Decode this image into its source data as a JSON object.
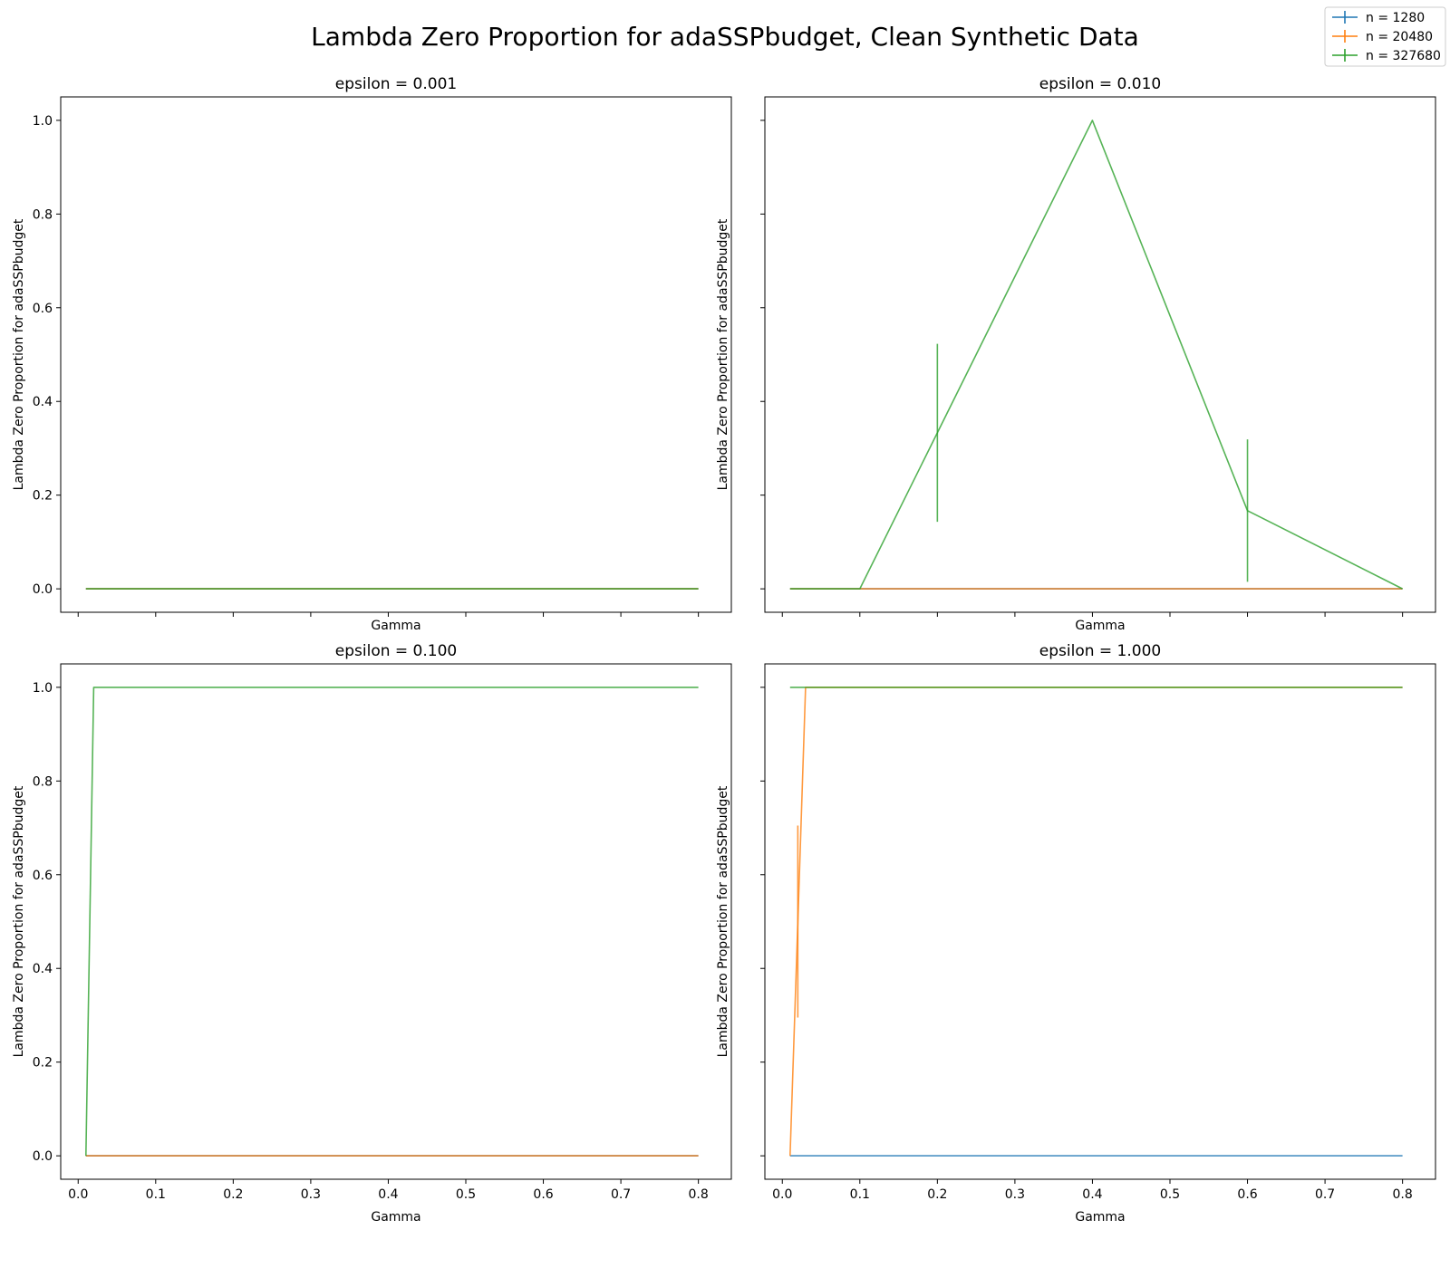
{
  "chart_data": {
    "type": "line",
    "title": "Lambda Zero Proportion for adaSSPbudget, Clean Synthetic Data",
    "legend": {
      "placement": "top-right",
      "entries": [
        {
          "label": "n = 1280",
          "color": "#1f77b4"
        },
        {
          "label": "n = 20480",
          "color": "#ff7f0e"
        },
        {
          "label": "n = 327680",
          "color": "#2ca02c"
        }
      ]
    },
    "shared": {
      "xlabel": "Gamma",
      "ylabel": "Lambda Zero Proportion for adaSSPbudget",
      "xlim": [
        -0.0225,
        0.8425
      ],
      "ylim": [
        -0.05,
        1.05
      ],
      "xticks": [
        0.0,
        0.1,
        0.2,
        0.3,
        0.4,
        0.5,
        0.6,
        0.7,
        0.8
      ],
      "xticklabels": [
        "0.0",
        "0.1",
        "0.2",
        "0.3",
        "0.4",
        "0.5",
        "0.6",
        "0.7",
        "0.8"
      ],
      "yticks": [
        0.0,
        0.2,
        0.4,
        0.6,
        0.8,
        1.0
      ],
      "yticklabels": [
        "0.0",
        "0.2",
        "0.4",
        "0.6",
        "0.8",
        "1.0"
      ],
      "grid": false
    },
    "panels": [
      {
        "title": "epsilon = 0.001",
        "series": [
          {
            "name": "n = 1280",
            "x": [
              0.01,
              0.02,
              0.03,
              0.1,
              0.2,
              0.4,
              0.6,
              0.8
            ],
            "y": [
              0,
              0,
              0,
              0,
              0,
              0,
              0,
              0
            ]
          },
          {
            "name": "n = 20480",
            "x": [
              0.01,
              0.02,
              0.03,
              0.1,
              0.2,
              0.4,
              0.6,
              0.8
            ],
            "y": [
              0,
              0,
              0,
              0,
              0,
              0,
              0,
              0
            ]
          },
          {
            "name": "n = 327680",
            "x": [
              0.01,
              0.02,
              0.03,
              0.1,
              0.2,
              0.4,
              0.6,
              0.8
            ],
            "y": [
              0,
              0,
              0,
              0,
              0,
              0,
              0,
              0
            ]
          }
        ]
      },
      {
        "title": "epsilon = 0.010",
        "series": [
          {
            "name": "n = 1280",
            "x": [
              0.01,
              0.02,
              0.03,
              0.1,
              0.2,
              0.4,
              0.6,
              0.8
            ],
            "y": [
              0,
              0,
              0,
              0,
              0,
              0,
              0,
              0
            ]
          },
          {
            "name": "n = 20480",
            "x": [
              0.01,
              0.02,
              0.03,
              0.1,
              0.2,
              0.4,
              0.6,
              0.8
            ],
            "y": [
              0,
              0,
              0,
              0,
              0,
              0,
              0,
              0
            ]
          },
          {
            "name": "n = 327680",
            "x": [
              0.01,
              0.02,
              0.03,
              0.1,
              0.2,
              0.4,
              0.6,
              0.8
            ],
            "y": [
              0,
              0,
              0,
              0,
              0.333,
              1.0,
              0.167,
              0
            ],
            "yerr": [
              0,
              0,
              0,
              0,
              0.19,
              0,
              0.152,
              0
            ]
          }
        ]
      },
      {
        "title": "epsilon = 0.100",
        "series": [
          {
            "name": "n = 1280",
            "x": [
              0.01,
              0.02,
              0.03,
              0.1,
              0.2,
              0.4,
              0.6,
              0.8
            ],
            "y": [
              0,
              0,
              0,
              0,
              0,
              0,
              0,
              0
            ]
          },
          {
            "name": "n = 20480",
            "x": [
              0.01,
              0.02,
              0.03,
              0.1,
              0.2,
              0.4,
              0.6,
              0.8
            ],
            "y": [
              0,
              0,
              0,
              0,
              0,
              0,
              0,
              0
            ]
          },
          {
            "name": "n = 327680",
            "x": [
              0.01,
              0.02,
              0.03,
              0.1,
              0.2,
              0.4,
              0.6,
              0.8
            ],
            "y": [
              0,
              1.0,
              1.0,
              1.0,
              1.0,
              1.0,
              1.0,
              1.0
            ]
          }
        ]
      },
      {
        "title": "epsilon = 1.000",
        "series": [
          {
            "name": "n = 1280",
            "x": [
              0.01,
              0.02,
              0.03,
              0.1,
              0.2,
              0.4,
              0.6,
              0.8
            ],
            "y": [
              0,
              0,
              0,
              0,
              0,
              0,
              0,
              0
            ]
          },
          {
            "name": "n = 20480",
            "x": [
              0.01,
              0.02,
              0.03,
              0.1,
              0.2,
              0.4,
              0.6,
              0.8
            ],
            "y": [
              0,
              0.5,
              1.0,
              1.0,
              1.0,
              1.0,
              1.0,
              1.0
            ],
            "yerr": [
              0,
              0.205,
              0,
              0,
              0,
              0,
              0,
              0
            ]
          },
          {
            "name": "n = 327680",
            "x": [
              0.01,
              0.02,
              0.03,
              0.1,
              0.2,
              0.4,
              0.6,
              0.8
            ],
            "y": [
              1.0,
              1.0,
              1.0,
              1.0,
              1.0,
              1.0,
              1.0,
              1.0
            ]
          }
        ]
      }
    ]
  }
}
